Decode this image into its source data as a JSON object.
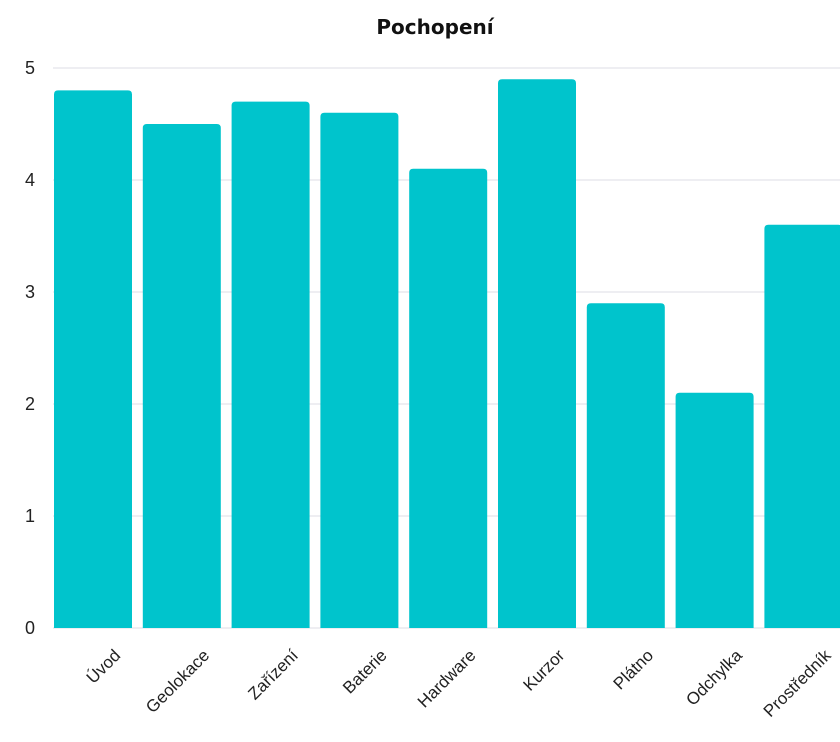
{
  "chart_data": {
    "type": "bar",
    "title": "Pochopení",
    "xlabel": "",
    "ylabel": "",
    "categories": [
      "Úvod",
      "Geolokace",
      "Zařízení",
      "Baterie",
      "Hardware",
      "Kurzor",
      "Plátno",
      "Odchylka",
      "Prostředník"
    ],
    "values": [
      4.8,
      4.5,
      4.7,
      4.6,
      4.1,
      4.9,
      2.9,
      2.1,
      3.6
    ],
    "ylim": [
      0,
      5
    ],
    "yticks": [
      "0",
      "1",
      "2",
      "3",
      "4",
      "5"
    ],
    "grid": true,
    "legend": "none",
    "bar_color": "#00c4cc"
  }
}
